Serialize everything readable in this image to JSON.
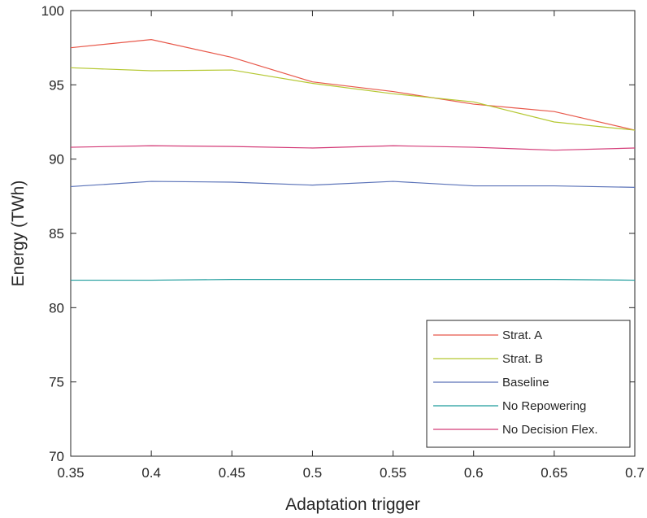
{
  "chart_data": {
    "type": "line",
    "title": "",
    "xlabel": "Adaptation trigger",
    "ylabel": "Energy  (TWh)",
    "xlim": [
      0.35,
      0.7
    ],
    "ylim": [
      70,
      100
    ],
    "x": [
      0.35,
      0.4,
      0.45,
      0.5,
      0.55,
      0.6,
      0.65,
      0.7
    ],
    "x_tick_labels": [
      "0.35",
      "0.4",
      "0.45",
      "0.5",
      "0.55",
      "0.6",
      "0.65",
      "0.7"
    ],
    "y_ticks": [
      70,
      75,
      80,
      85,
      90,
      95,
      100
    ],
    "y_tick_labels": [
      "70",
      "75",
      "80",
      "85",
      "90",
      "95",
      "100"
    ],
    "grid": false,
    "legend_position": "bottom-right",
    "series": [
      {
        "name": "Strat. A",
        "color": "#e8584a",
        "values": [
          97.5,
          98.05,
          96.85,
          95.2,
          94.55,
          93.7,
          93.2,
          91.95
        ]
      },
      {
        "name": "Strat. B",
        "color": "#b5c832",
        "values": [
          96.15,
          95.95,
          96.0,
          95.1,
          94.4,
          93.85,
          92.5,
          91.95
        ]
      },
      {
        "name": "Baseline",
        "color": "#5a72b8",
        "values": [
          88.15,
          88.5,
          88.45,
          88.25,
          88.5,
          88.2,
          88.2,
          88.1
        ]
      },
      {
        "name": "No Repowering",
        "color": "#1e9c9c",
        "values": [
          81.85,
          81.85,
          81.9,
          81.9,
          81.9,
          81.9,
          81.9,
          81.85
        ]
      },
      {
        "name": "No Decision Flex.",
        "color": "#d43c78",
        "values": [
          90.8,
          90.9,
          90.85,
          90.75,
          90.9,
          90.8,
          90.6,
          90.75
        ]
      }
    ]
  }
}
